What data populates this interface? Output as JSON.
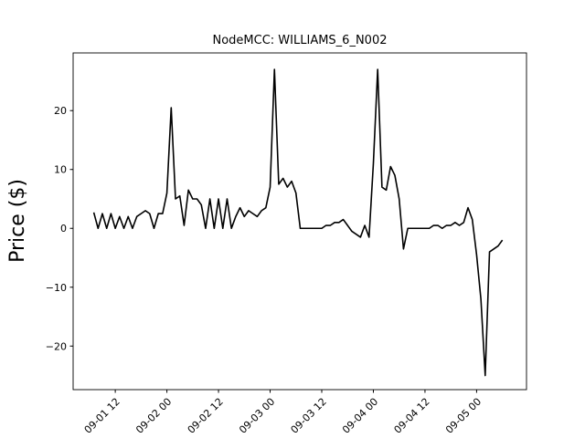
{
  "chart_data": {
    "type": "line",
    "title": "NodeMCC: WILLIAMS_6_N002",
    "y_label": "Price ($)",
    "color": "#000000",
    "x": [
      "09-01 07",
      "09-01 08",
      "09-01 09",
      "09-01 10",
      "09-01 11",
      "09-01 12",
      "09-01 13",
      "09-01 14",
      "09-01 15",
      "09-01 16",
      "09-01 17",
      "09-01 18",
      "09-01 19",
      "09-01 20",
      "09-01 21",
      "09-01 22",
      "09-01 23",
      "09-02 00",
      "09-02 01",
      "09-02 02",
      "09-02 03",
      "09-02 04",
      "09-02 05",
      "09-02 06",
      "09-02 07",
      "09-02 08",
      "09-02 09",
      "09-02 10",
      "09-02 11",
      "09-02 12",
      "09-02 13",
      "09-02 14",
      "09-02 15",
      "09-02 16",
      "09-02 17",
      "09-02 18",
      "09-02 19",
      "09-02 20",
      "09-02 21",
      "09-02 22",
      "09-02 23",
      "09-03 00",
      "09-03 01",
      "09-03 02",
      "09-03 03",
      "09-03 04",
      "09-03 05",
      "09-03 06",
      "09-03 07",
      "09-03 08",
      "09-03 09",
      "09-03 10",
      "09-03 11",
      "09-03 12",
      "09-03 13",
      "09-03 14",
      "09-03 15",
      "09-03 16",
      "09-03 17",
      "09-03 18",
      "09-03 19",
      "09-03 20",
      "09-03 21",
      "09-03 22",
      "09-03 23",
      "09-04 00",
      "09-04 01",
      "09-04 02",
      "09-04 03",
      "09-04 04",
      "09-04 05",
      "09-04 06",
      "09-04 07",
      "09-04 08",
      "09-04 09",
      "09-04 10",
      "09-04 11",
      "09-04 12",
      "09-04 13",
      "09-04 14",
      "09-04 15",
      "09-04 16",
      "09-04 17",
      "09-04 18",
      "09-04 19",
      "09-04 20",
      "09-04 21",
      "09-04 22",
      "09-04 23",
      "09-05 00",
      "09-05 01",
      "09-05 02",
      "09-05 03",
      "09-05 04",
      "09-05 05",
      "09-05 06"
    ],
    "values": [
      2.7,
      0,
      2.5,
      0,
      2.5,
      0,
      2,
      0,
      2,
      0,
      2,
      2.5,
      3,
      2.5,
      0,
      2.5,
      2.5,
      6,
      20.5,
      5,
      5.5,
      0.5,
      6.5,
      5,
      5,
      4,
      0,
      5,
      0,
      5,
      0,
      5,
      0,
      2,
      3.5,
      2,
      3,
      2.5,
      2,
      3,
      3.5,
      7,
      27,
      7.5,
      8.5,
      7,
      8,
      6,
      0,
      0,
      0,
      0,
      0,
      0,
      0.5,
      0.5,
      1,
      1,
      1.5,
      0.5,
      -0.5,
      -1,
      -1.5,
      0.5,
      -1.5,
      11,
      27,
      7,
      6.5,
      10.5,
      9,
      5,
      -3.5,
      0,
      0,
      0,
      0,
      0,
      0,
      0.5,
      0.5,
      0,
      0.5,
      0.5,
      1,
      0.5,
      1,
      3.5,
      1.5,
      -4.5,
      -12,
      -25,
      -4,
      -3.5,
      -3,
      -2
    ],
    "xlim": [
      "09-01 02:12",
      "09-05 11:36"
    ],
    "xticks": [
      "09-01 12",
      "09-02 00",
      "09-02 12",
      "09-03 00",
      "09-03 12",
      "09-04 00",
      "09-04 12",
      "09-05 00"
    ],
    "ylim": [
      -27.4,
      29.8
    ],
    "yticks": [
      {
        "value": -20,
        "label": "−20"
      },
      {
        "value": -10,
        "label": "−10"
      },
      0,
      10,
      20
    ]
  }
}
